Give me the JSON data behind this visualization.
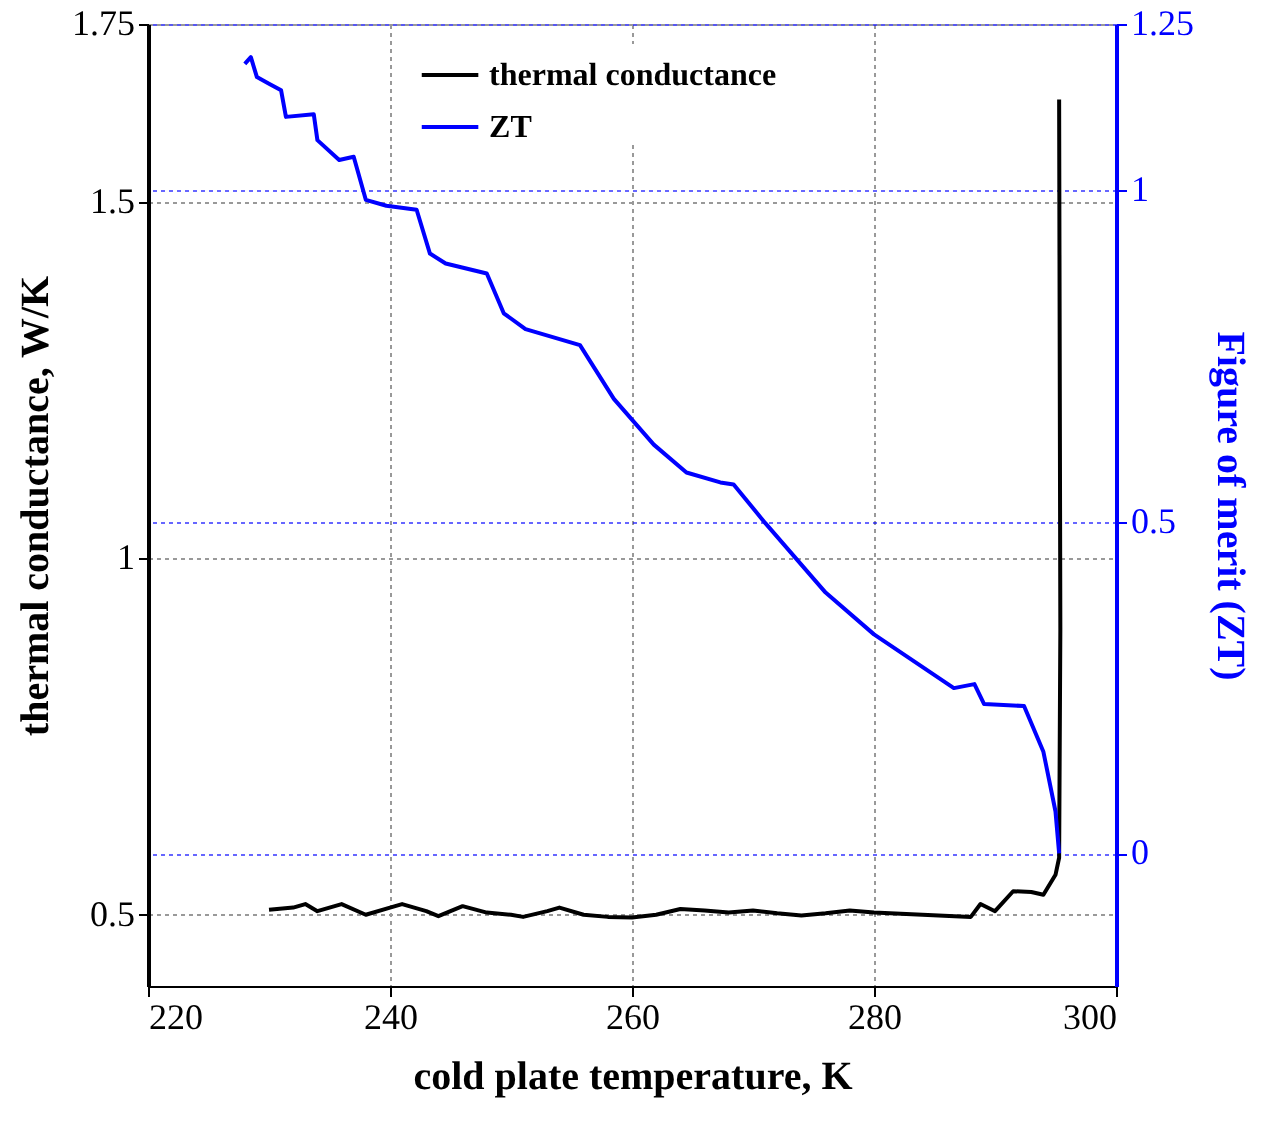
{
  "chart_data": {
    "type": "line",
    "xlabel": "cold plate temperature, K",
    "ylabel": "thermal conductance, W/K",
    "y2label": "Figure of merit (ZT)",
    "xlim": [
      220,
      300
    ],
    "xticks": [
      220,
      240,
      260,
      280,
      300
    ],
    "ylim": [
      0.4,
      1.75
    ],
    "yticks": [
      0.5,
      1,
      1.5,
      1.75
    ],
    "y2lim": [
      -0.2,
      1.25
    ],
    "y2ticks": [
      0,
      0.5,
      1,
      1.25
    ],
    "grid": true,
    "legend": "top",
    "line_style": "solid",
    "marker": "none",
    "series": [
      {
        "name": "thermal conductance",
        "color": "#000000",
        "x": [
          230,
          232,
          233,
          234,
          236,
          238,
          240,
          241,
          243,
          244,
          246,
          248,
          250,
          251,
          253,
          254,
          256,
          258,
          260,
          262,
          264,
          266,
          268,
          270,
          272,
          274,
          276,
          278,
          280,
          284,
          288,
          288.8,
          290,
          291.5,
          293,
          294,
          295,
          295.3,
          295.4,
          295.3
        ],
        "values": [
          0.507,
          0.51,
          0.515,
          0.505,
          0.515,
          0.5,
          0.51,
          0.515,
          0.505,
          0.498,
          0.512,
          0.503,
          0.5,
          0.497,
          0.505,
          0.51,
          0.5,
          0.497,
          0.496,
          0.5,
          0.508,
          0.506,
          0.503,
          0.506,
          0.502,
          0.499,
          0.502,
          0.506,
          0.503,
          0.5,
          0.497,
          0.515,
          0.505,
          0.533,
          0.532,
          0.528,
          0.556,
          0.58,
          0.9,
          1.644
        ]
      },
      {
        "name": "ZT",
        "color": "#0000ff",
        "axis": "y2",
        "x": [
          228,
          228.5,
          229,
          230,
          231,
          231.4,
          233.7,
          234,
          235.8,
          237,
          238,
          239.7,
          242.2,
          243.3,
          244.6,
          248,
          249.4,
          251.2,
          255.7,
          258.5,
          261.8,
          264.5,
          267.3,
          268.4,
          271,
          276,
          280,
          286.6,
          288.3,
          289.1,
          292.4,
          294,
          295,
          295.3
        ],
        "values": [
          1.19,
          1.2,
          1.17,
          1.16,
          1.15,
          1.11,
          1.114,
          1.075,
          1.045,
          1.05,
          0.985,
          0.976,
          0.97,
          0.904,
          0.889,
          0.874,
          0.814,
          0.79,
          0.766,
          0.685,
          0.616,
          0.574,
          0.559,
          0.556,
          0.498,
          0.393,
          0.33,
          0.249,
          0.255,
          0.225,
          0.222,
          0.153,
          0.063,
          0.0
        ]
      }
    ]
  }
}
